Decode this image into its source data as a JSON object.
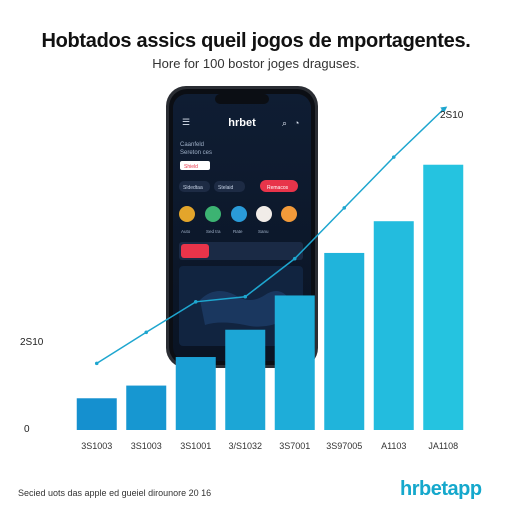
{
  "page": {
    "title": "Hobtados assics queil jogos de mportagentes.",
    "subtitle": "Hore for 100 bostor joges draguses.",
    "footer": "Secied uots das apple ed gueiel dirounore 20 16",
    "brand": "hrbetapp"
  },
  "colors": {
    "bar_dark": "#1590cf",
    "bar_light": "#25c3e0",
    "line": "#1ea6cf",
    "phone_screen": "#0e1a2e",
    "accent_red": "#e8344a"
  },
  "phone": {
    "header": "hrbet",
    "promo_line1": "Caanfeld",
    "promo_line2": "Sereton ces",
    "promo_tag": "Shield",
    "chips": [
      "Sldedtaa",
      "Stelaid",
      "Remacos"
    ],
    "icon_labels": [
      "Auto",
      "Sed tra",
      "Rate",
      "Sanu",
      "Aos"
    ]
  },
  "chart_data": {
    "type": "bar",
    "categories": [
      "3S1003",
      "3S1003",
      "3S1001",
      "3/S1032",
      "3S7001",
      "3S97005",
      "A1103",
      "JA1108"
    ],
    "values": [
      500,
      700,
      1150,
      1580,
      2120,
      2790,
      3290,
      4180
    ],
    "line_values": [
      1050,
      1540,
      2020,
      2100,
      2700,
      3500,
      4300,
      5050
    ],
    "y_tick_labels": [
      "0",
      "2S10",
      "2S10"
    ],
    "ylim": [
      0,
      5200
    ],
    "grid": false,
    "title": "Hobtados assics queil jogos de mportagentes.",
    "subtitle": "Hore for 100 bostor joges draguses."
  }
}
